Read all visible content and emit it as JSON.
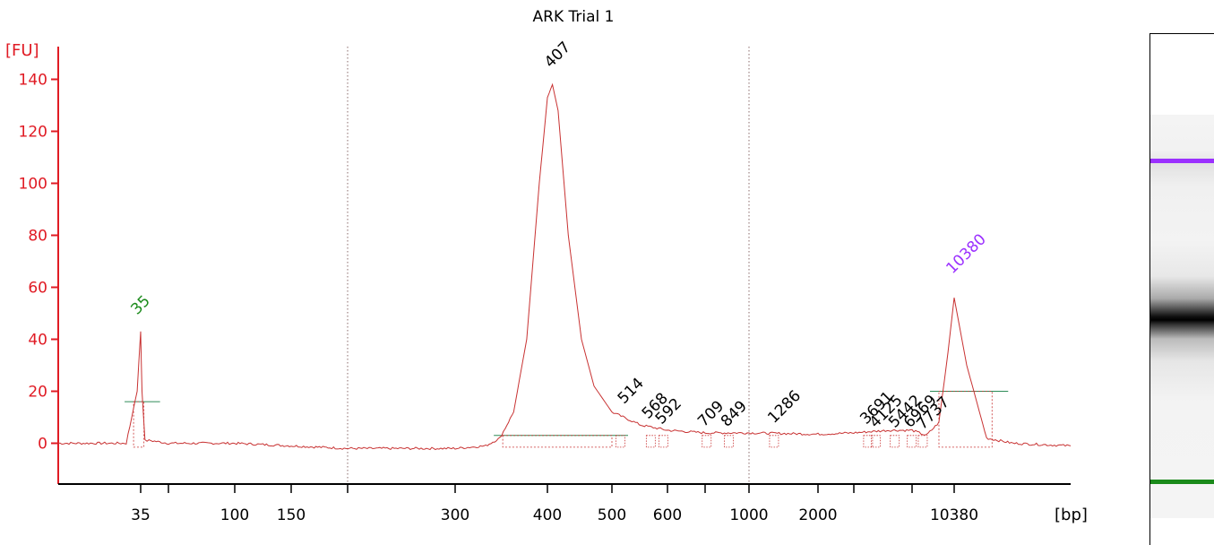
{
  "colors": {
    "axis": "#e01b24",
    "trace": "#c83232",
    "baseline": "#2e8b57",
    "lower_marker": "#1a8a1a",
    "upper_marker": "#9b30ff",
    "label": "#000000",
    "gridline": "#8a6a6a"
  },
  "chart_data": {
    "type": "line",
    "title": "ARK Trial 1",
    "ylabel": "[FU]",
    "xlabel": "[bp]",
    "ylim": [
      -15,
      150
    ],
    "y_ticks": [
      0,
      20,
      40,
      60,
      80,
      100,
      120,
      140
    ],
    "x_scale": "ladder (non-linear, sizing ladder)",
    "x_tick_labels": [
      "35",
      "100",
      "150",
      "300",
      "400",
      "500",
      "600",
      "1000",
      "2000",
      "10380"
    ],
    "x_tick_ladder": [
      {
        "bp": 35,
        "label": "35"
      },
      {
        "bp": 50,
        "label": ""
      },
      {
        "bp": 100,
        "label": "100"
      },
      {
        "bp": 150,
        "label": "150"
      },
      {
        "bp": 200,
        "label": ""
      },
      {
        "bp": 300,
        "label": "300"
      },
      {
        "bp": 400,
        "label": "400"
      },
      {
        "bp": 500,
        "label": "500"
      },
      {
        "bp": 600,
        "label": "600"
      },
      {
        "bp": 700,
        "label": ""
      },
      {
        "bp": 1000,
        "label": "1000"
      },
      {
        "bp": 2000,
        "label": "2000"
      },
      {
        "bp": 3000,
        "label": ""
      },
      {
        "bp": 7000,
        "label": ""
      },
      {
        "bp": 10380,
        "label": "10380"
      }
    ],
    "grid": "vertical dotted lines at 200 bp and 1000 bp",
    "peaks": [
      {
        "label": "35",
        "bp": 35,
        "fu": 43,
        "role": "lower marker"
      },
      {
        "label": "407",
        "bp": 407,
        "fu": 138
      },
      {
        "label": "514",
        "bp": 514,
        "fu": 8
      },
      {
        "label": "568",
        "bp": 568,
        "fu": 5
      },
      {
        "label": "592",
        "bp": 592,
        "fu": 5
      },
      {
        "label": "709",
        "bp": 709,
        "fu": 4
      },
      {
        "label": "849",
        "bp": 849,
        "fu": 4
      },
      {
        "label": "1286",
        "bp": 1286,
        "fu": 4
      },
      {
        "label": "3691",
        "bp": 3691,
        "fu": 5
      },
      {
        "label": "4125",
        "bp": 4125,
        "fu": 5
      },
      {
        "label": "5442",
        "bp": 5442,
        "fu": 5
      },
      {
        "label": "6969",
        "bp": 6969,
        "fu": 5
      },
      {
        "label": "7737",
        "bp": 7737,
        "fu": 5
      },
      {
        "label": "10380",
        "bp": 10380,
        "fu": 56,
        "role": "upper marker"
      }
    ],
    "trace": [
      [
        25,
        0
      ],
      [
        33,
        0
      ],
      [
        34.5,
        20
      ],
      [
        35,
        43
      ],
      [
        35.6,
        20
      ],
      [
        37,
        1
      ],
      [
        40,
        1
      ],
      [
        50,
        0
      ],
      [
        100,
        0
      ],
      [
        150,
        -1
      ],
      [
        200,
        -2
      ],
      [
        250,
        -2
      ],
      [
        300,
        -2
      ],
      [
        330,
        -1
      ],
      [
        345,
        2
      ],
      [
        360,
        12
      ],
      [
        375,
        40
      ],
      [
        390,
        100
      ],
      [
        400,
        133
      ],
      [
        407,
        138
      ],
      [
        415,
        128
      ],
      [
        430,
        80
      ],
      [
        450,
        40
      ],
      [
        470,
        22
      ],
      [
        500,
        12
      ],
      [
        550,
        7
      ],
      [
        600,
        5
      ],
      [
        700,
        4
      ],
      [
        1000,
        4
      ],
      [
        2000,
        3.5
      ],
      [
        3000,
        4
      ],
      [
        5000,
        5
      ],
      [
        7000,
        5
      ],
      [
        8000,
        3
      ],
      [
        9000,
        8
      ],
      [
        9800,
        35
      ],
      [
        10380,
        56
      ],
      [
        10800,
        30
      ],
      [
        11500,
        2
      ],
      [
        12500,
        0
      ],
      [
        15000,
        -1
      ]
    ],
    "peak_regions": [
      {
        "label": "35",
        "range_bp": [
          34,
          36.5
        ],
        "baseline_fu": 16
      },
      {
        "label": "407",
        "range_bp": [
          348,
          500
        ],
        "baseline_fu": 3
      },
      {
        "label": "10380",
        "range_bp": [
          9000,
          11700
        ],
        "baseline_fu": 20
      }
    ],
    "gel_image": {
      "bands": [
        "upper marker (purple)",
        "sample band (black)",
        "lower marker (green)"
      ]
    }
  }
}
